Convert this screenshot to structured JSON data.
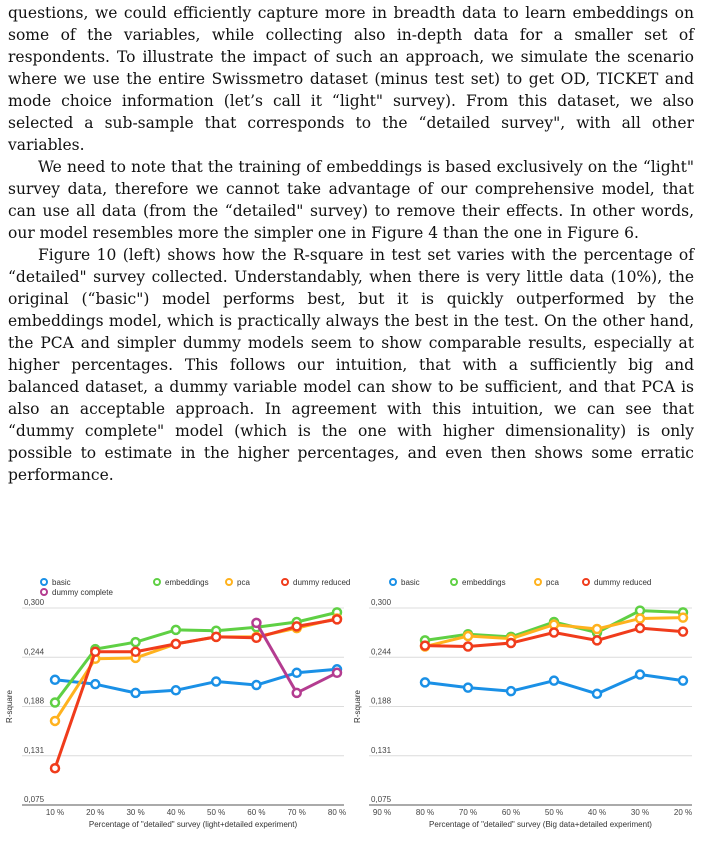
{
  "paragraphs": [
    "questions, we could efficiently capture more in breadth data to learn embeddings on some of the variables, while collecting also in-depth data for a smaller set of respondents. To illustrate the impact of such an approach, we simulate the scenario where we use the entire Swissmetro dataset (minus test set) to get OD, TICKET and mode choice information (let’s call it “light\" survey). From this dataset, we also selected a sub-sample that corresponds to the “detailed survey\", with all other variables.",
    "We need to note that the training of embeddings is based exclusively on the “light\" survey data, therefore we cannot take advantage of our comprehensive model, that can use all data (from the “detailed\" survey) to remove their effects. In other words, our model resembles more the simpler one in Figure 4 than the one in Figure 6.",
    "Figure 10 (left) shows how the R-square in test set varies with the percentage of “detailed\" survey collected. Understandably, when there is very little data (10%), the original (“basic\") model performs best, but it is quickly outperformed by the embeddings model, which is practically always the best in the test. On the other hand, the PCA and simpler dummy models seem to show comparable results, especially at higher percentages. This follows our intuition, that with a sufficiently big and balanced dataset, a dummy variable model can show to be sufficient, and that PCA is also an acceptable approach. In agreement with this intuition, we can see that “dummy complete\" model (which is the one with higher dimensionality) is only possible to estimate in the higher percentages, and even then shows some erratic performance."
  ],
  "chart_data": [
    {
      "type": "line",
      "ylabel": "R-square",
      "xlabel": "Percentage of \"detailed\" survey (light+detailed experiment)",
      "categories": [
        "10 %",
        "20 %",
        "30 %",
        "40 %",
        "50 %",
        "60 %",
        "70 %",
        "80 %"
      ],
      "ylim": [
        0.075,
        0.3
      ],
      "yticks": [
        "0,075",
        "0,131",
        "0,188",
        "0,244",
        "0,300"
      ],
      "grid": true,
      "legend_position": "top-left",
      "series": [
        {
          "name": "basic",
          "color": "#1a90e6",
          "values": [
            0.218,
            0.213,
            0.203,
            0.206,
            0.216,
            0.212,
            0.226,
            0.23
          ]
        },
        {
          "name": "embeddings",
          "color": "#5fd044",
          "values": [
            0.192,
            0.253,
            0.261,
            0.275,
            0.274,
            0.278,
            0.284,
            0.295
          ]
        },
        {
          "name": "pca",
          "color": "#ffb21e",
          "values": [
            0.171,
            0.242,
            0.243,
            0.259,
            0.267,
            0.267,
            0.277,
            0.288
          ]
        },
        {
          "name": "dummy reduced",
          "color": "#f03c1c",
          "values": [
            0.117,
            0.25,
            0.25,
            0.259,
            0.267,
            0.266,
            0.279,
            0.287
          ]
        },
        {
          "name": "dummy complete",
          "color": "#b43c90",
          "values": [
            null,
            null,
            null,
            null,
            null,
            0.283,
            0.203,
            0.226
          ]
        }
      ]
    },
    {
      "type": "line",
      "ylabel": "R-square",
      "xlabel": "Percentage of \"detailed\" survey (Big data+detailed experiment)",
      "categories": [
        "90 %",
        "80 %",
        "70 %",
        "60 %",
        "50 %",
        "40 %",
        "30 %",
        "20 %"
      ],
      "ylim": [
        0.075,
        0.3
      ],
      "yticks": [
        "0,075",
        "0,131",
        "0,188",
        "0,244",
        "0,300"
      ],
      "grid": true,
      "legend_position": "top",
      "series": [
        {
          "name": "basic",
          "color": "#1a90e6",
          "values": [
            null,
            0.215,
            0.209,
            0.205,
            0.217,
            0.202,
            0.224,
            0.217
          ]
        },
        {
          "name": "embeddings",
          "color": "#5fd044",
          "values": [
            null,
            0.263,
            0.27,
            0.267,
            0.284,
            0.272,
            0.297,
            0.295
          ]
        },
        {
          "name": "pca",
          "color": "#ffb21e",
          "values": [
            null,
            0.256,
            0.268,
            0.265,
            0.281,
            0.276,
            0.288,
            0.289
          ]
        },
        {
          "name": "dummy reduced",
          "color": "#f03c1c",
          "values": [
            null,
            0.257,
            0.256,
            0.26,
            0.272,
            0.263,
            0.277,
            0.273
          ]
        }
      ]
    }
  ]
}
